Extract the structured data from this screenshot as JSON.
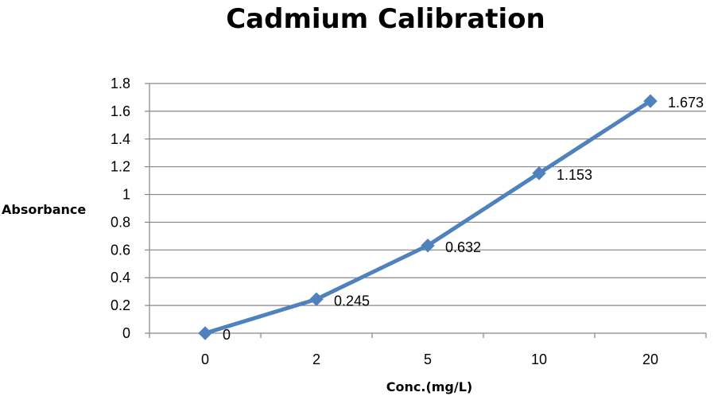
{
  "chart_data": {
    "type": "line",
    "title": "Cadmium Calibration",
    "xlabel": "Conc.(mg/L)",
    "ylabel": "Absorbance",
    "categories": [
      "0",
      "2",
      "5",
      "10",
      "20"
    ],
    "series": [
      {
        "values": [
          0,
          0.245,
          0.632,
          1.153,
          1.673
        ],
        "data_labels": [
          "0",
          "0.245",
          "0.632",
          "1.153",
          "1.673"
        ],
        "color": "#4F81BD",
        "marker": "diamond"
      }
    ],
    "ylim": [
      0,
      1.8
    ],
    "yticks": [
      "0",
      "0.2",
      "0.4",
      "0.6",
      "0.8",
      "1",
      "1.2",
      "1.4",
      "1.6",
      "1.8"
    ],
    "grid": true,
    "legend": "none"
  }
}
